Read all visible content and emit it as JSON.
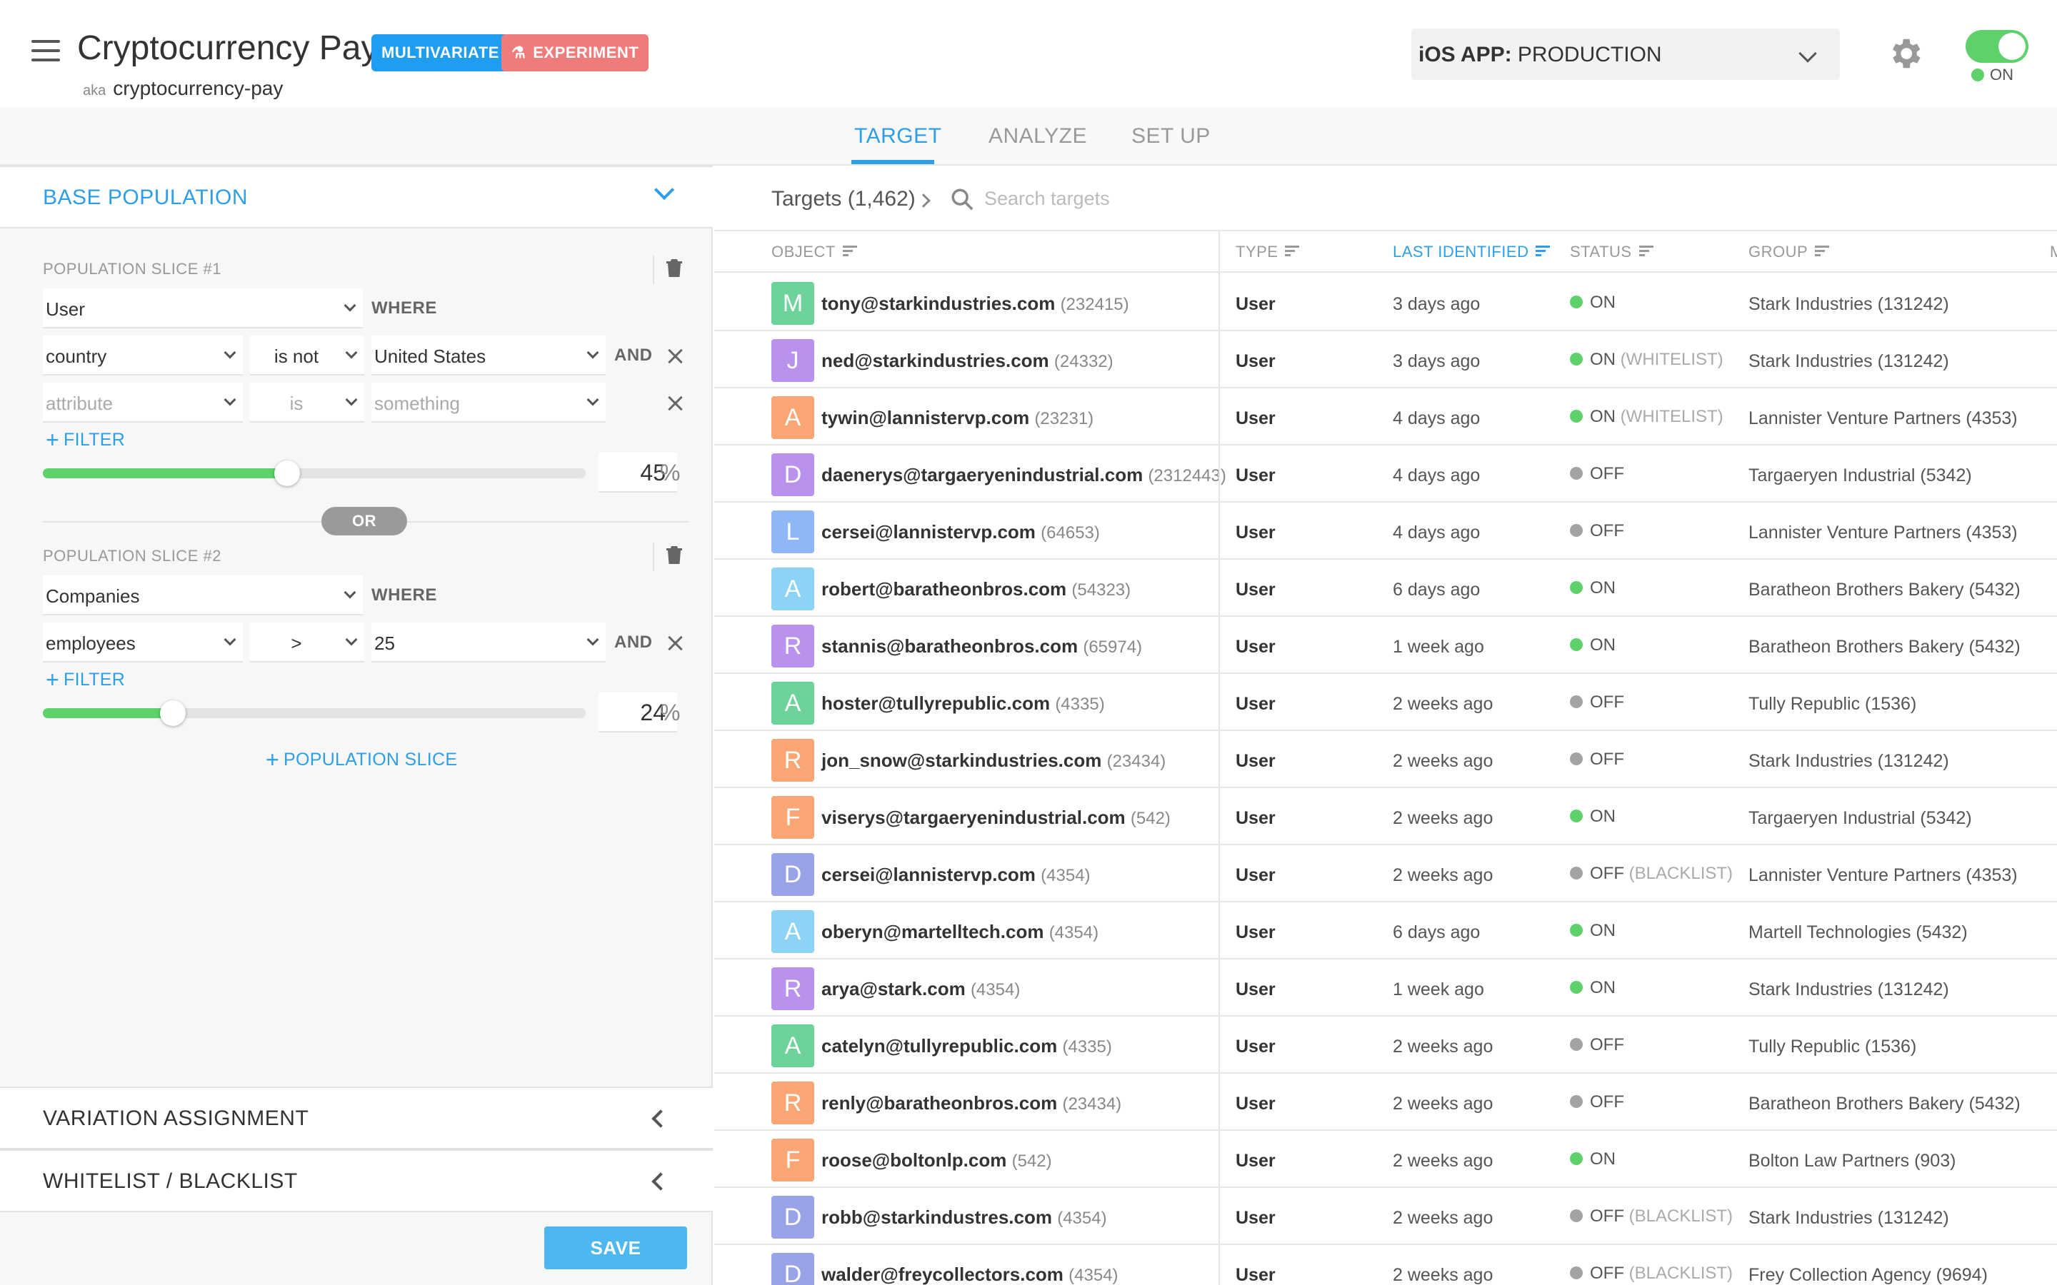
{
  "header": {
    "title": "Cryptocurrency Pay",
    "badge_multivariate": "MULTIVARIATE",
    "badge_experiment": "EXPERIMENT",
    "aka_label": "aka",
    "aka_key": "cryptocurrency-pay",
    "env_label": "iOS APP:",
    "env_value": "PRODUCTION",
    "toggle_state": "ON",
    "toggle_color": "#5ed16b"
  },
  "tabs": [
    "TARGET",
    "ANALYZE",
    "SET UP"
  ],
  "active_tab": "TARGET",
  "left": {
    "base_population": "BASE POPULATION",
    "slice1": {
      "title": "POPULATION SLICE #1",
      "entity": "User",
      "where": "WHERE",
      "cond1": {
        "attr": "country",
        "op": "is not",
        "value": "United States",
        "join": "AND"
      },
      "cond2": {
        "attr_placeholder": "attribute",
        "op": "is",
        "value_placeholder": "something"
      },
      "filter_link": "FILTER",
      "percent": 45,
      "percent_sign": "%"
    },
    "or_label": "OR",
    "slice2": {
      "title": "POPULATION SLICE #2",
      "entity": "Companies",
      "where": "WHERE",
      "cond1": {
        "attr": "employees",
        "op": ">",
        "value": "25",
        "join": "AND"
      },
      "filter_link": "FILTER",
      "percent": 24,
      "percent_sign": "%"
    },
    "add_slice": "POPULATION SLICE",
    "variation_assignment": "VARIATION ASSIGNMENT",
    "whitelist_blacklist": "WHITELIST / BLACKLIST",
    "save": "SAVE"
  },
  "targets": {
    "count_label": "Targets (1,462)",
    "search_placeholder": "Search targets",
    "columns": [
      "OBJECT",
      "TYPE",
      "LAST IDENTIFIED",
      "STATUS",
      "GROUP",
      "M"
    ],
    "sorted_column": "LAST IDENTIFIED",
    "rows": [
      {
        "letter": "M",
        "color": "#6dd39b",
        "email": "tony@starkindustries.com",
        "id": "(232415)",
        "type": "User",
        "last": "3 days ago",
        "status": "ON",
        "note": "",
        "group": "Stark Industries (131242)"
      },
      {
        "letter": "J",
        "color": "#b892ec",
        "email": "ned@starkindustries.com",
        "id": "(24332)",
        "type": "User",
        "last": "3 days ago",
        "status": "ON",
        "note": "(WHITELIST)",
        "group": "Stark Industries (131242)"
      },
      {
        "letter": "A",
        "color": "#f9a674",
        "email": "tywin@lannistervp.com",
        "id": "(23231)",
        "type": "User",
        "last": "4 days ago",
        "status": "ON",
        "note": "(WHITELIST)",
        "group": "Lannister Venture Partners (4353)"
      },
      {
        "letter": "D",
        "color": "#b892ec",
        "email": "daenerys@targaeryenindustrial.com",
        "id": "(2312443)",
        "type": "User",
        "last": "4 days ago",
        "status": "OFF",
        "note": "",
        "group": "Targaeryen Industrial (5342)"
      },
      {
        "letter": "L",
        "color": "#8fb6f5",
        "email": "cersei@lannistervp.com",
        "id": "(64653)",
        "type": "User",
        "last": "4 days ago",
        "status": "OFF",
        "note": "",
        "group": "Lannister Venture Partners (4353)"
      },
      {
        "letter": "A",
        "color": "#8cd3f5",
        "email": "robert@baratheonbros.com",
        "id": "(54323)",
        "type": "User",
        "last": "6 days ago",
        "status": "ON",
        "note": "",
        "group": "Baratheon Brothers Bakery (5432)"
      },
      {
        "letter": "R",
        "color": "#b892ec",
        "email": "stannis@baratheonbros.com",
        "id": "(65974)",
        "type": "User",
        "last": "1 week ago",
        "status": "ON",
        "note": "",
        "group": "Baratheon Brothers Bakery (5432)"
      },
      {
        "letter": "A",
        "color": "#6dd39b",
        "email": "hoster@tullyrepublic.com",
        "id": "(4335)",
        "type": "User",
        "last": "2 weeks ago",
        "status": "OFF",
        "note": "",
        "group": "Tully Republic (1536)"
      },
      {
        "letter": "R",
        "color": "#f9a674",
        "email": "jon_snow@starkindustries.com",
        "id": "(23434)",
        "type": "User",
        "last": "2 weeks ago",
        "status": "OFF",
        "note": "",
        "group": "Stark Industries (131242)"
      },
      {
        "letter": "F",
        "color": "#f9a674",
        "email": "viserys@targaeryenindustrial.com",
        "id": "(542)",
        "type": "User",
        "last": "2 weeks ago",
        "status": "ON",
        "note": "",
        "group": "Targaeryen Industrial (5342)"
      },
      {
        "letter": "D",
        "color": "#9aa2e8",
        "email": "cersei@lannistervp.com",
        "id": "(4354)",
        "type": "User",
        "last": "2 weeks ago",
        "status": "OFF",
        "note": "(BLACKLIST)",
        "group": "Lannister Venture Partners (4353)"
      },
      {
        "letter": "A",
        "color": "#8cd3f5",
        "email": "oberyn@martelltech.com",
        "id": "(4354)",
        "type": "User",
        "last": "6 days ago",
        "status": "ON",
        "note": "",
        "group": "Martell Technologies (5432)"
      },
      {
        "letter": "R",
        "color": "#b892ec",
        "email": "arya@stark.com",
        "id": "(4354)",
        "type": "User",
        "last": "1 week ago",
        "status": "ON",
        "note": "",
        "group": "Stark Industries (131242)"
      },
      {
        "letter": "A",
        "color": "#6dd39b",
        "email": "catelyn@tullyrepublic.com",
        "id": "(4335)",
        "type": "User",
        "last": "2 weeks ago",
        "status": "OFF",
        "note": "",
        "group": "Tully Republic (1536)"
      },
      {
        "letter": "R",
        "color": "#f9a674",
        "email": "renly@baratheonbros.com",
        "id": "(23434)",
        "type": "User",
        "last": "2 weeks ago",
        "status": "OFF",
        "note": "",
        "group": "Baratheon Brothers Bakery (5432)"
      },
      {
        "letter": "F",
        "color": "#f9a674",
        "email": "roose@boltonlp.com",
        "id": "(542)",
        "type": "User",
        "last": "2 weeks ago",
        "status": "ON",
        "note": "",
        "group": "Bolton Law Partners (903)"
      },
      {
        "letter": "D",
        "color": "#9aa2e8",
        "email": "robb@starkindustres.com",
        "id": "(4354)",
        "type": "User",
        "last": "2 weeks ago",
        "status": "OFF",
        "note": "(BLACKLIST)",
        "group": "Stark Industries (131242)"
      },
      {
        "letter": "D",
        "color": "#9aa2e8",
        "email": "walder@freycollectors.com",
        "id": "(4354)",
        "type": "User",
        "last": "2 weeks ago",
        "status": "OFF",
        "note": "(BLACKLIST)",
        "group": "Frey Collection Agency (9694)"
      }
    ]
  },
  "colors": {
    "accent": "#2e9fe6",
    "on": "#5ed16b",
    "off": "#a3a3a3"
  }
}
